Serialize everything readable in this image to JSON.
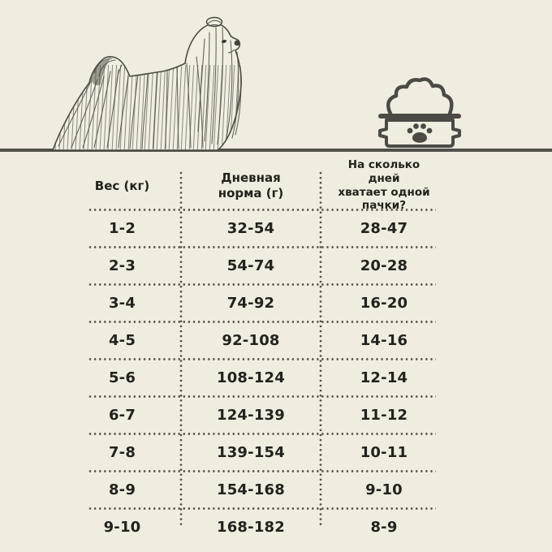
{
  "page": {
    "background_color": "#f0ecdf",
    "text_color": "#23221c",
    "dotted_line_color": "#55524a",
    "ground_line_color": "#51504a"
  },
  "scene": {
    "dog_icon": "long-haired-dog-illustration",
    "bowl_icon": "dog-food-bowl-icon",
    "paw_icon": "paw-print-icon"
  },
  "chart_data": {
    "type": "table",
    "columns": [
      "Вес (кг)",
      "Дневная\nнорма (г)",
      "На сколько дней\nхватает одной\nпачки?"
    ],
    "rows": [
      [
        "1-2",
        "32-54",
        "28-47"
      ],
      [
        "2-3",
        "54-74",
        "20-28"
      ],
      [
        "3-4",
        "74-92",
        "16-20"
      ],
      [
        "4-5",
        "92-108",
        "14-16"
      ],
      [
        "5-6",
        "108-124",
        "12-14"
      ],
      [
        "6-7",
        "124-139",
        "11-12"
      ],
      [
        "7-8",
        "139-154",
        "10-11"
      ],
      [
        "8-9",
        "154-168",
        "9-10"
      ],
      [
        "9-10",
        "168-182",
        "8-9"
      ]
    ]
  }
}
